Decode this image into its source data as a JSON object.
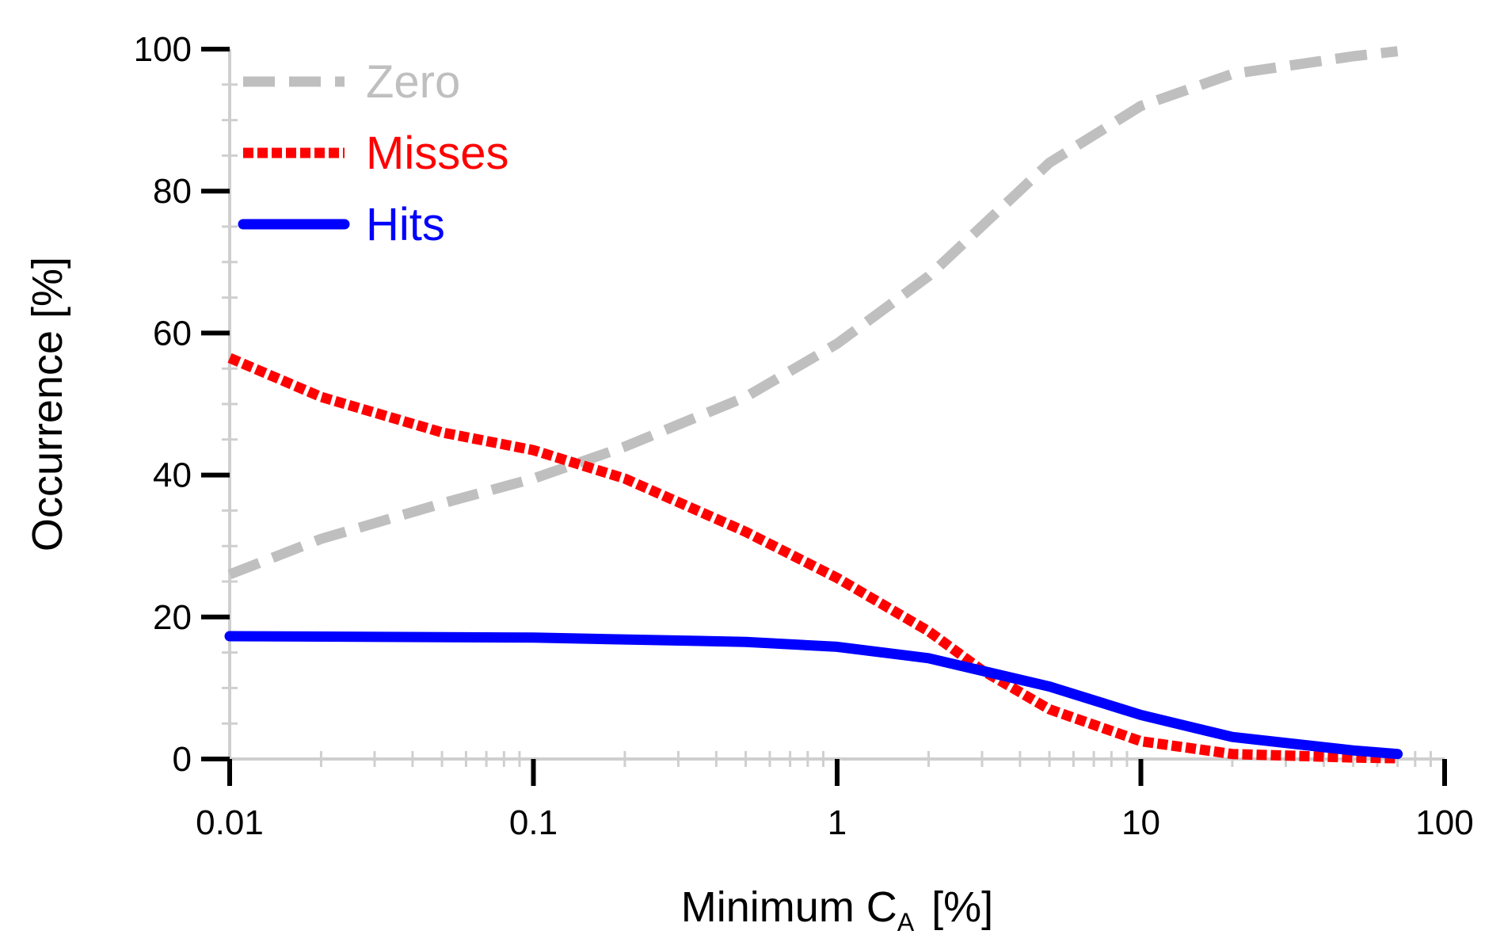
{
  "chart_data": {
    "type": "line",
    "xlabel": "Minimum C",
    "xlabel_subscript": "A",
    "xlabel_unit": "[%]",
    "ylabel": "Occurrence [%]",
    "xscale": "log",
    "xlim": [
      0.01,
      100
    ],
    "ylim": [
      0,
      100
    ],
    "x_ticks": [
      {
        "value": 0.01,
        "label": "0.01"
      },
      {
        "value": 0.1,
        "label": "0.1"
      },
      {
        "value": 1,
        "label": "1"
      },
      {
        "value": 10,
        "label": "10"
      },
      {
        "value": 100,
        "label": "100"
      }
    ],
    "y_ticks": [
      {
        "value": 0,
        "label": "0"
      },
      {
        "value": 20,
        "label": "20"
      },
      {
        "value": 40,
        "label": "40"
      },
      {
        "value": 60,
        "label": "60"
      },
      {
        "value": 80,
        "label": "80"
      },
      {
        "value": 100,
        "label": "100"
      }
    ],
    "y_minor_step": 5,
    "grid": false,
    "legend_position": "top-left",
    "series": [
      {
        "name": "Zero",
        "color": "#bfbfbf",
        "style": "dashed",
        "x": [
          0.01,
          0.02,
          0.05,
          0.1,
          0.2,
          0.5,
          1,
          2,
          5,
          10,
          20,
          50,
          70
        ],
        "y": [
          26,
          31,
          36,
          39.5,
          44,
          51,
          58.5,
          68,
          84,
          92,
          96.5,
          99,
          99.7
        ]
      },
      {
        "name": "Misses",
        "color": "#ff0000",
        "style": "dotted",
        "x": [
          0.01,
          0.02,
          0.05,
          0.1,
          0.2,
          0.5,
          1,
          2,
          3,
          5,
          10,
          20,
          50,
          70
        ],
        "y": [
          56.5,
          51,
          46,
          43.5,
          39.5,
          32,
          25.5,
          18,
          12.5,
          7,
          2.5,
          0.7,
          0.2,
          0.1
        ]
      },
      {
        "name": "Hits",
        "color": "#0000ff",
        "style": "solid",
        "x": [
          0.01,
          0.1,
          0.5,
          1,
          2,
          5,
          10,
          20,
          50,
          70
        ],
        "y": [
          17.3,
          17.1,
          16.5,
          15.8,
          14.2,
          10.2,
          6.2,
          3.1,
          1.2,
          0.7
        ]
      }
    ]
  }
}
